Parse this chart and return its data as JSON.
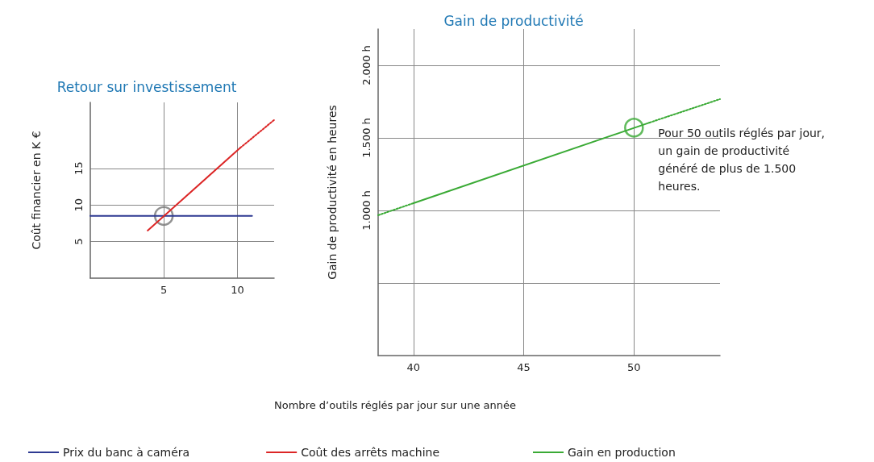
{
  "chart_data": [
    {
      "type": "line",
      "title": "Retour sur investissement",
      "ylabel": "Coût financier en K €",
      "xlim": [
        0,
        12.5
      ],
      "xticks": [
        5,
        10
      ],
      "ylim": [
        0,
        24
      ],
      "yticks": [
        5,
        10,
        15
      ],
      "grid": true,
      "legend": "bottom",
      "marker": "none",
      "series": [
        {
          "name": "Prix du banc à caméra",
          "color": "#2e3a92",
          "x": [
            0,
            11
          ],
          "values": [
            8.5,
            8.5
          ],
          "line_style": "solid"
        },
        {
          "name": "Coût des arrêts machine",
          "color": "#dc2626",
          "x": [
            3.9,
            10.2
          ],
          "values": [
            6.5,
            17.8
          ],
          "line_style": "solid"
        },
        {
          "color": "#dc2626",
          "x": [
            10.2,
            12.5
          ],
          "values": [
            17.8,
            21.6
          ],
          "line_style": "dotted"
        },
        {
          "type": "scatter",
          "color": "#777777",
          "x": [
            5
          ],
          "values": [
            8.5
          ],
          "marker": "circle"
        }
      ]
    },
    {
      "type": "line",
      "title": "Gain de productivité",
      "xlabel": "Nombre d’outils réglés par jour sur une année",
      "ylabel": "Gain de productivité en heures",
      "xlim": [
        38.4,
        53.9
      ],
      "xticks": [
        40,
        45,
        50
      ],
      "ylim": [
        0,
        2250
      ],
      "yticks": [
        {
          "value": 500,
          "label": null
        },
        {
          "value": 1000,
          "label": "1.000 h"
        },
        {
          "value": 1500,
          "label": "1.500 h"
        },
        {
          "value": 2000,
          "label": "2.000 h"
        }
      ],
      "grid": true,
      "legend": "bottom",
      "marker": "none",
      "annotations": [
        {
          "text": "Pour 50 outils réglés par jour, un gain de productivité généré de plus de 1.500 heures.",
          "x": 50,
          "y": 1570
        }
      ],
      "series": [
        {
          "name": "Gain en production",
          "color": "#3aaa35",
          "x": [
            40,
            50.7
          ],
          "values": [
            1050,
            1605
          ],
          "line_style": "solid"
        },
        {
          "color": "#3aaa35",
          "x": [
            38.4,
            40
          ],
          "values": [
            967,
            1050
          ],
          "line_style": "dotted"
        },
        {
          "color": "#3aaa35",
          "x": [
            50.7,
            53.9
          ],
          "values": [
            1605,
            1767
          ],
          "line_style": "dotted"
        },
        {
          "type": "scatter",
          "color": "#3aaa35",
          "x": [
            50
          ],
          "values": [
            1570
          ],
          "marker": "circle"
        }
      ]
    }
  ]
}
